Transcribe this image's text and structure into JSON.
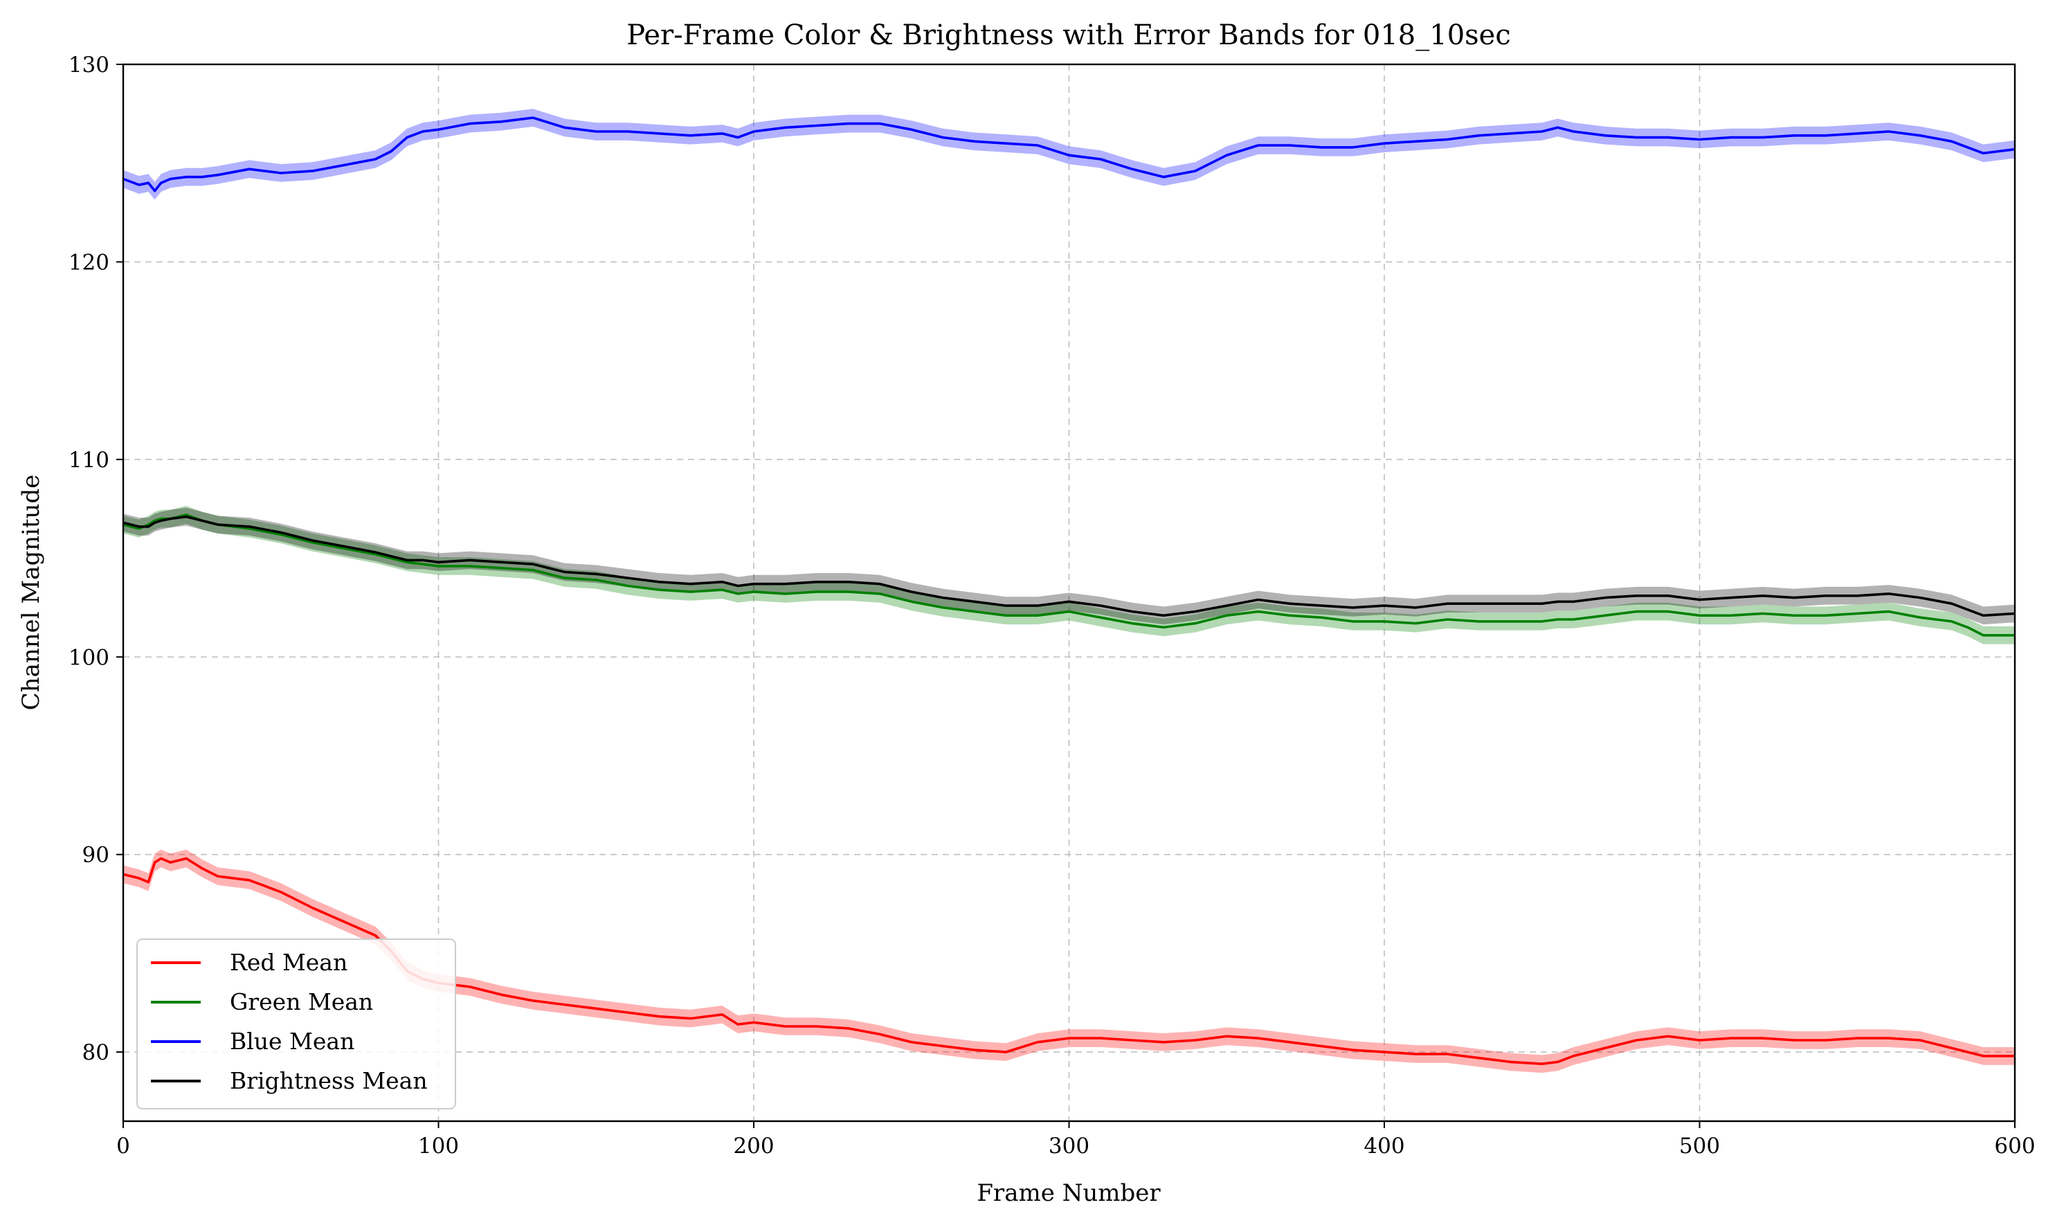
{
  "chart_data": {
    "type": "line",
    "title": "Per-Frame Color & Brightness with Error Bands for 018_10sec",
    "xlabel": "Frame Number",
    "ylabel": "Channel Magnitude",
    "xlim": [
      0,
      600
    ],
    "ylim": [
      76.5,
      130
    ],
    "xticks": [
      "0",
      "100",
      "200",
      "300",
      "400",
      "500",
      "600"
    ],
    "yticks": [
      "80",
      "90",
      "100",
      "110",
      "120",
      "130"
    ],
    "grid": true,
    "legend_position": "lower-left",
    "band_halfwidth": 0.45,
    "x": [
      0,
      5,
      8,
      10,
      12,
      15,
      20,
      25,
      30,
      40,
      50,
      60,
      70,
      80,
      85,
      90,
      95,
      100,
      110,
      120,
      130,
      140,
      150,
      160,
      170,
      180,
      190,
      195,
      200,
      210,
      220,
      230,
      240,
      250,
      260,
      270,
      280,
      290,
      300,
      310,
      320,
      330,
      340,
      350,
      360,
      370,
      380,
      390,
      400,
      410,
      420,
      430,
      440,
      450,
      455,
      460,
      470,
      480,
      490,
      500,
      510,
      520,
      530,
      540,
      550,
      560,
      570,
      580,
      585,
      590,
      600
    ],
    "series": [
      {
        "name": "Red Mean",
        "color": "#ff0000",
        "values": [
          89,
          88.8,
          88.6,
          89.6,
          89.8,
          89.6,
          89.8,
          89.3,
          88.9,
          88.7,
          88.1,
          87.3,
          86.6,
          85.9,
          85.1,
          84.1,
          83.7,
          83.5,
          83.3,
          82.9,
          82.6,
          82.4,
          82.2,
          82.0,
          81.8,
          81.7,
          81.9,
          81.4,
          81.5,
          81.3,
          81.3,
          81.2,
          80.9,
          80.5,
          80.3,
          80.1,
          80.0,
          80.5,
          80.7,
          80.7,
          80.6,
          80.5,
          80.6,
          80.8,
          80.7,
          80.5,
          80.3,
          80.1,
          80.0,
          79.9,
          79.9,
          79.7,
          79.5,
          79.4,
          79.5,
          79.8,
          80.2,
          80.6,
          80.8,
          80.6,
          80.7,
          80.7,
          80.6,
          80.6,
          80.7,
          80.7,
          80.6,
          80.2,
          80.0,
          79.8,
          79.8
        ]
      },
      {
        "name": "Green Mean",
        "color": "#008000",
        "values": [
          106.7,
          106.5,
          106.7,
          106.9,
          107.0,
          107.0,
          107.2,
          106.9,
          106.7,
          106.5,
          106.2,
          105.8,
          105.5,
          105.2,
          105.0,
          104.8,
          104.7,
          104.6,
          104.6,
          104.5,
          104.4,
          104.0,
          103.9,
          103.6,
          103.4,
          103.3,
          103.4,
          103.2,
          103.3,
          103.2,
          103.3,
          103.3,
          103.2,
          102.8,
          102.5,
          102.3,
          102.1,
          102.1,
          102.3,
          102.0,
          101.7,
          101.5,
          101.7,
          102.1,
          102.3,
          102.1,
          102.0,
          101.8,
          101.8,
          101.7,
          101.9,
          101.8,
          101.8,
          101.8,
          101.9,
          101.9,
          102.1,
          102.3,
          102.3,
          102.1,
          102.1,
          102.2,
          102.1,
          102.1,
          102.2,
          102.3,
          102.0,
          101.8,
          101.5,
          101.1,
          101.1
        ]
      },
      {
        "name": "Blue Mean",
        "color": "#0000ff",
        "values": [
          124.2,
          123.9,
          124.0,
          123.6,
          124.0,
          124.2,
          124.3,
          124.3,
          124.4,
          124.7,
          124.5,
          124.6,
          124.9,
          125.2,
          125.6,
          126.3,
          126.6,
          126.7,
          127.0,
          127.1,
          127.3,
          126.8,
          126.6,
          126.6,
          126.5,
          126.4,
          126.5,
          126.3,
          126.6,
          126.8,
          126.9,
          127.0,
          127.0,
          126.7,
          126.3,
          126.1,
          126.0,
          125.9,
          125.4,
          125.2,
          124.7,
          124.3,
          124.6,
          125.4,
          125.9,
          125.9,
          125.8,
          125.8,
          126.0,
          126.1,
          126.2,
          126.4,
          126.5,
          126.6,
          126.8,
          126.6,
          126.4,
          126.3,
          126.3,
          126.2,
          126.3,
          126.3,
          126.4,
          126.4,
          126.5,
          126.6,
          126.4,
          126.1,
          125.8,
          125.5,
          125.7
        ]
      },
      {
        "name": "Brightness Mean",
        "color": "#000000",
        "values": [
          106.8,
          106.6,
          106.6,
          106.8,
          106.9,
          107.0,
          107.1,
          106.9,
          106.7,
          106.6,
          106.3,
          105.9,
          105.6,
          105.3,
          105.1,
          104.9,
          104.9,
          104.8,
          104.9,
          104.8,
          104.7,
          104.3,
          104.2,
          104.0,
          103.8,
          103.7,
          103.8,
          103.6,
          103.7,
          103.7,
          103.8,
          103.8,
          103.7,
          103.3,
          103.0,
          102.8,
          102.6,
          102.6,
          102.8,
          102.6,
          102.3,
          102.1,
          102.3,
          102.6,
          102.9,
          102.7,
          102.6,
          102.5,
          102.6,
          102.5,
          102.7,
          102.7,
          102.7,
          102.7,
          102.8,
          102.8,
          103.0,
          103.1,
          103.1,
          102.9,
          103.0,
          103.1,
          103.0,
          103.1,
          103.1,
          103.2,
          103.0,
          102.7,
          102.4,
          102.1,
          102.2
        ]
      }
    ]
  }
}
